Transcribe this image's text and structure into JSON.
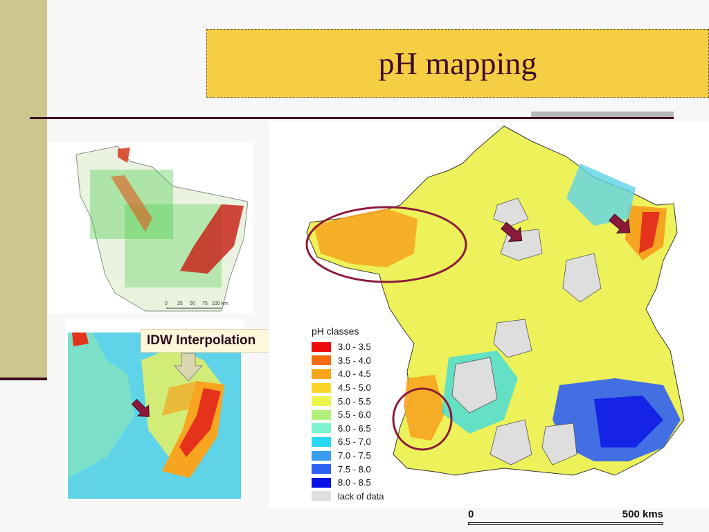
{
  "slide": {
    "title": "pH mapping",
    "idw_label": "IDW Interpolation"
  },
  "legend": {
    "title": "pH classes",
    "items": [
      {
        "label": "3.0 - 3.5",
        "color": "#ee0a0a"
      },
      {
        "label": "3.5 - 4.0",
        "color": "#f76b10"
      },
      {
        "label": "4.0 - 4.5",
        "color": "#f9a51a"
      },
      {
        "label": "4.5 - 5.0",
        "color": "#fbd629"
      },
      {
        "label": "5.0 - 5.5",
        "color": "#eaf64a"
      },
      {
        "label": "5.5 - 6.0",
        "color": "#b2f27a"
      },
      {
        "label": "6.0 - 6.5",
        "color": "#7cf2cf"
      },
      {
        "label": "6.5 - 7.0",
        "color": "#29d8f2"
      },
      {
        "label": "7.0 - 7.5",
        "color": "#3a9cf4"
      },
      {
        "label": "7.5 - 8.0",
        "color": "#2f62f2"
      },
      {
        "label": "8.0 - 8.5",
        "color": "#0a12e6"
      },
      {
        "label": "lack of data",
        "color": "#dedede"
      }
    ]
  },
  "scale_bar": {
    "start_label": "0",
    "end_label": "500 kms"
  },
  "small_map_scale_labels": [
    "0",
    "25",
    "50",
    "75",
    "100 km"
  ],
  "colors": {
    "title_bg": "#f6ce44",
    "title_text": "#3b0a2a",
    "side_band": "#cdc78f",
    "rule": "#3c0a22",
    "highlight_circle": "#8b1a3a",
    "arrow": "#8b1a3a"
  }
}
